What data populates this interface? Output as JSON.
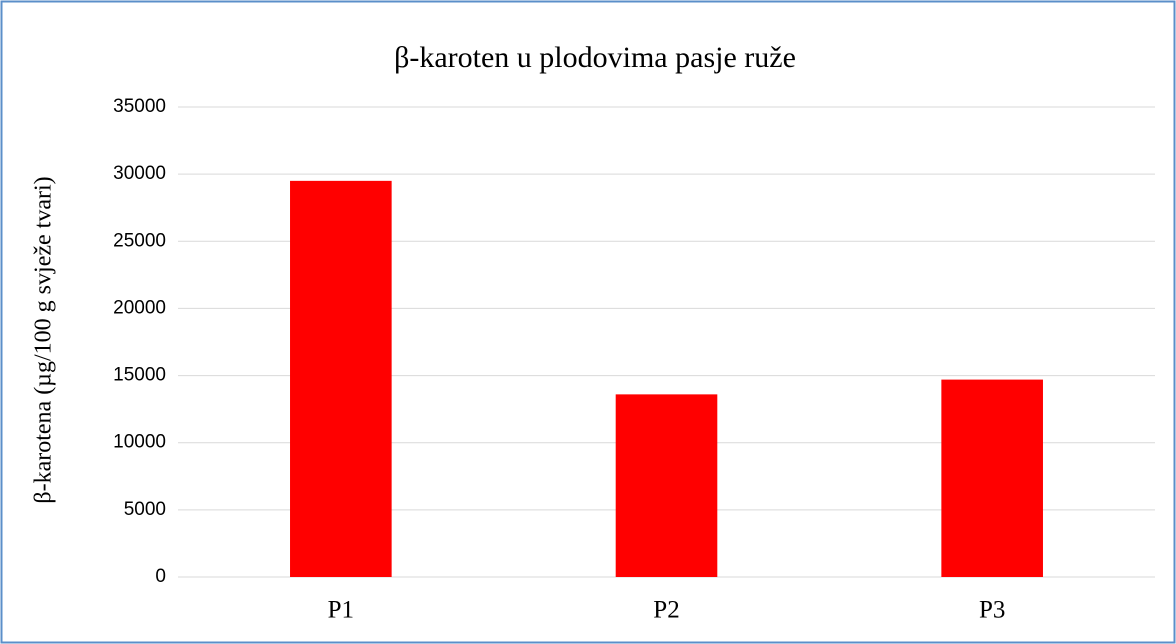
{
  "chart_data": {
    "type": "bar",
    "title": "β-karoten u plodovima pasje ruže",
    "y_label": "β-karotena (µg/100 g svježe tvari)",
    "categories": [
      "P1",
      "P2",
      "P3"
    ],
    "values": [
      29500,
      13600,
      14700
    ],
    "color": "#ff0000",
    "ylim": [
      0,
      35000
    ],
    "yticks": [
      0,
      5000,
      10000,
      15000,
      20000,
      25000,
      30000,
      35000
    ],
    "grid": true
  }
}
